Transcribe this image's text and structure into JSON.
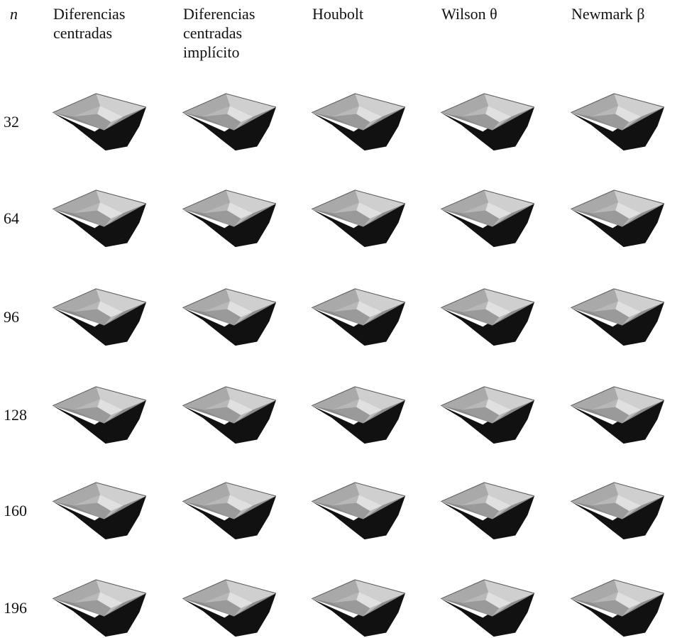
{
  "header": {
    "n_label": "n",
    "columns": [
      "Diferencias centradas",
      "Diferencias centradas implícito",
      "Houbolt",
      "Wilson θ",
      "Newmark β"
    ]
  },
  "rows": [
    32,
    64,
    96,
    128,
    160,
    196
  ]
}
